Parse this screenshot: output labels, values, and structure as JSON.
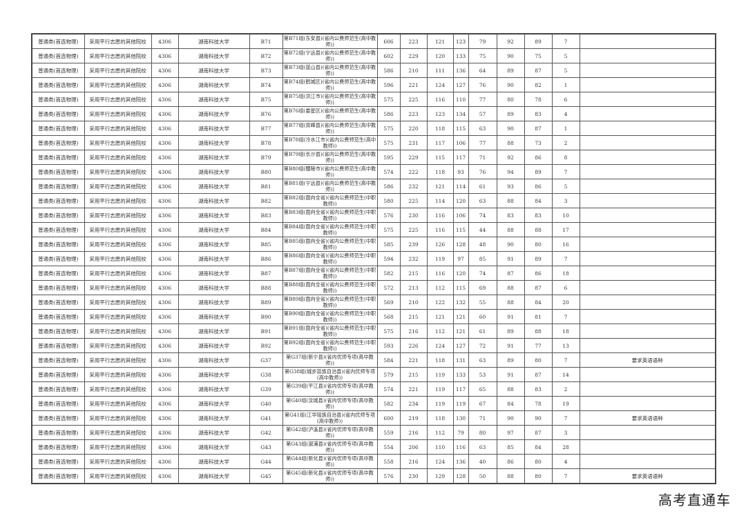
{
  "common": {
    "category": "普通类(首选物理)",
    "batch": "采用平行志愿的其他院校",
    "school_code": "4306",
    "school_name": "湖南科技大学"
  },
  "rows": [
    {
      "code": "B71",
      "name": "第B71组(东安县)(省内公费师范生(高中教师))",
      "v": [
        "606",
        "223",
        "121",
        "123",
        "79",
        "92",
        "89",
        "7"
      ],
      "note": ""
    },
    {
      "code": "B72",
      "name": "第B72组(宁远县)(省内公费师范生(高中教师))",
      "v": [
        "602",
        "229",
        "120",
        "133",
        "75",
        "90",
        "75",
        "5"
      ],
      "note": ""
    },
    {
      "code": "B73",
      "name": "第B73组(蓝山县)(省内公费师范生(高中教师))",
      "v": [
        "586",
        "210",
        "111",
        "136",
        "64",
        "89",
        "87",
        "5"
      ],
      "note": ""
    },
    {
      "code": "B74",
      "name": "第B74组(鹤城区)(省内公费师范生(高中教师))",
      "v": [
        "596",
        "221",
        "124",
        "127",
        "76",
        "90",
        "82",
        "1"
      ],
      "note": ""
    },
    {
      "code": "B75",
      "name": "第B75组(洪江市)(省内公费师范生(高中教师))",
      "v": [
        "575",
        "225",
        "116",
        "110",
        "77",
        "80",
        "78",
        "6"
      ],
      "note": ""
    },
    {
      "code": "B76",
      "name": "第B76组(娄星区)(省内公费师范生(高中教师))",
      "v": [
        "586",
        "223",
        "123",
        "134",
        "57",
        "89",
        "83",
        "4"
      ],
      "note": ""
    },
    {
      "code": "B77",
      "name": "第B77组(双峰县)(省内公费师范生(高中教师))",
      "v": [
        "575",
        "220",
        "118",
        "115",
        "63",
        "90",
        "87",
        "1"
      ],
      "note": ""
    },
    {
      "code": "B78",
      "name": "第B78组(冷水江市)(省内公费师范生(高中教师))",
      "v": [
        "575",
        "231",
        "117",
        "106",
        "77",
        "88",
        "73",
        "2"
      ],
      "note": ""
    },
    {
      "code": "B79",
      "name": "第B79组(长沙县)(省内公费师范生(高中教师))",
      "v": [
        "595",
        "229",
        "115",
        "117",
        "71",
        "92",
        "86",
        "8"
      ],
      "note": ""
    },
    {
      "code": "B80",
      "name": "第B80组(醴陵市)(省内公费师范生(高中教师))",
      "v": [
        "574",
        "222",
        "118",
        "93",
        "76",
        "94",
        "89",
        "7"
      ],
      "note": ""
    },
    {
      "code": "B81",
      "name": "第B81组(宁远县)(省内公费师范生(高中教师))",
      "v": [
        "586",
        "232",
        "121",
        "114",
        "61",
        "93",
        "86",
        "5"
      ],
      "note": ""
    },
    {
      "code": "B82",
      "name": "第B82组(面向全省)(省内公费师范生(中职教师))",
      "v": [
        "580",
        "225",
        "114",
        "120",
        "63",
        "88",
        "84",
        "3"
      ],
      "note": ""
    },
    {
      "code": "B83",
      "name": "第B83组(面向全省)(省内公费师范生(中职教师))",
      "v": [
        "576",
        "230",
        "116",
        "106",
        "74",
        "83",
        "83",
        "10"
      ],
      "note": ""
    },
    {
      "code": "B84",
      "name": "第B84组(面向全省)(省内公费师范生(中职教师))",
      "v": [
        "575",
        "225",
        "116",
        "115",
        "44",
        "88",
        "88",
        "17"
      ],
      "note": ""
    },
    {
      "code": "B85",
      "name": "第B85组(面向全省)(省内公费师范生(中职教师))",
      "v": [
        "585",
        "239",
        "126",
        "128",
        "48",
        "90",
        "80",
        "16"
      ],
      "note": ""
    },
    {
      "code": "B86",
      "name": "第B86组(面向全省)(省内公费师范生(中职教师))",
      "v": [
        "594",
        "232",
        "119",
        "97",
        "85",
        "91",
        "89",
        "7"
      ],
      "note": ""
    },
    {
      "code": "B87",
      "name": "第B87组(面向全省)(省内公费师范生(中职教师))",
      "v": [
        "582",
        "215",
        "116",
        "120",
        "74",
        "87",
        "86",
        "18"
      ],
      "note": ""
    },
    {
      "code": "B88",
      "name": "第B88组(面向全省)(省内公费师范生(中职教师))",
      "v": [
        "572",
        "213",
        "112",
        "115",
        "69",
        "88",
        "87",
        "6"
      ],
      "note": ""
    },
    {
      "code": "B89",
      "name": "第B89组(面向全省)(省内公费师范生(中职教师))",
      "v": [
        "569",
        "210",
        "122",
        "132",
        "55",
        "88",
        "84",
        "20"
      ],
      "note": ""
    },
    {
      "code": "B90",
      "name": "第B90组(面向全省)(省内公费师范生(中职教师))",
      "v": [
        "568",
        "215",
        "121",
        "121",
        "60",
        "91",
        "81",
        "7"
      ],
      "note": ""
    },
    {
      "code": "B91",
      "name": "第B91组(面向全省)(省内公费师范生(中职教师))",
      "v": [
        "575",
        "216",
        "112",
        "121",
        "61",
        "89",
        "88",
        "18"
      ],
      "note": ""
    },
    {
      "code": "B92",
      "name": "第B92组(面向全省)(省内公费师范生(中职教师))",
      "v": [
        "593",
        "226",
        "124",
        "127",
        "72",
        "91",
        "77",
        "13"
      ],
      "note": ""
    },
    {
      "code": "G37",
      "name": "第G37组(新宁县)(省内优师专项(高中教师))",
      "v": [
        "584",
        "221",
        "118",
        "131",
        "63",
        "89",
        "80",
        "7"
      ],
      "note": "要求英语语种"
    },
    {
      "code": "G38",
      "name": "第G38组(城步苗族自治县)(省内优师专项(高中教师))",
      "v": [
        "579",
        "215",
        "119",
        "133",
        "53",
        "91",
        "87",
        "14"
      ],
      "note": ""
    },
    {
      "code": "G39",
      "name": "第G39组(平江县)(省内优师专项(高中教师))",
      "v": [
        "574",
        "221",
        "119",
        "117",
        "65",
        "88",
        "83",
        "2"
      ],
      "note": ""
    },
    {
      "code": "G40",
      "name": "第G40组(汝城县)(省内优师专项(高中教师))",
      "v": [
        "582",
        "234",
        "119",
        "119",
        "67",
        "84",
        "78",
        "19"
      ],
      "note": ""
    },
    {
      "code": "G41",
      "name": "第G41组(江华瑶族自治县)(省内优师专项(高中教师))",
      "v": [
        "600",
        "219",
        "118",
        "130",
        "71",
        "90",
        "90",
        "7"
      ],
      "note": "要求英语语种"
    },
    {
      "code": "G42",
      "name": "第G42组(泸溪县)(省内优师专项(高中教师))",
      "v": [
        "559",
        "216",
        "112",
        "79",
        "80",
        "97",
        "87",
        "3"
      ],
      "note": ""
    },
    {
      "code": "G43",
      "name": "第G43组(溆浦县)(省内优师专项(高中教师))",
      "v": [
        "554",
        "206",
        "110",
        "116",
        "63",
        "85",
        "84",
        "28"
      ],
      "note": ""
    },
    {
      "code": "G44",
      "name": "第G44组(新化县)(省内优师专项(高中教师))",
      "v": [
        "558",
        "216",
        "124",
        "136",
        "40",
        "86",
        "80",
        "4"
      ],
      "note": ""
    },
    {
      "code": "G45",
      "name": "第G45组(新化县)(省内优师专项(高中教师))",
      "v": [
        "576",
        "230",
        "129",
        "128",
        "50",
        "88",
        "80",
        "7"
      ],
      "note": "要求英语语种"
    }
  ],
  "watermark": "高考直通车"
}
